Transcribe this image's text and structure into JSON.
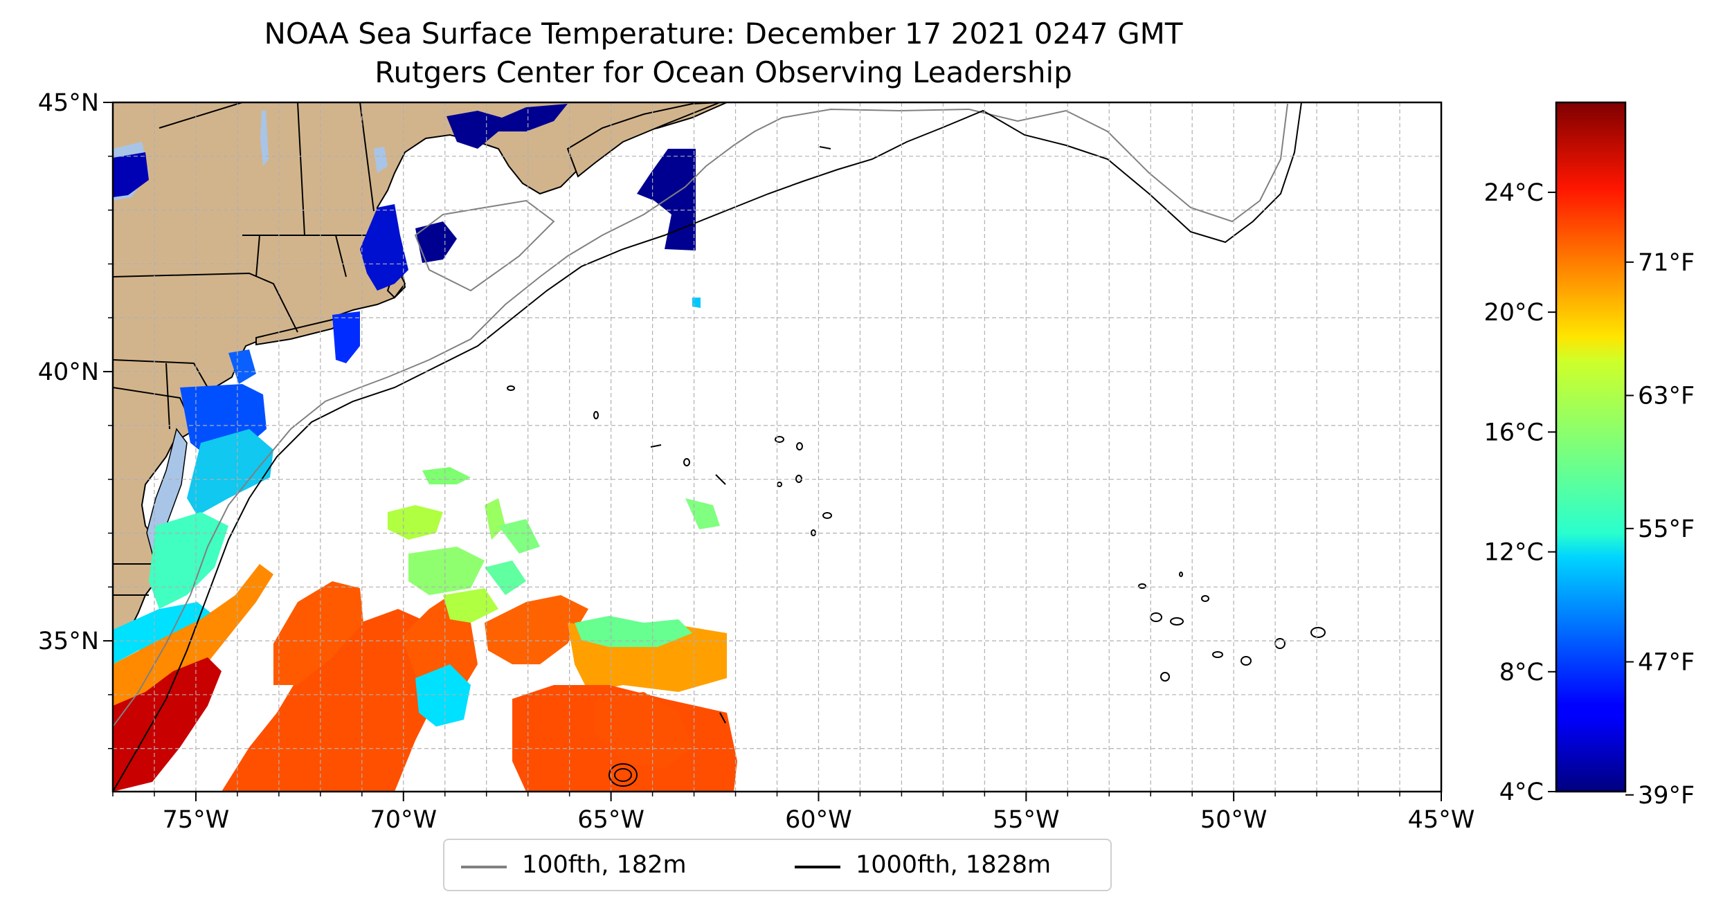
{
  "title": {
    "line1": "NOAA Sea Surface Temperature: December 17 2021 0247 GMT",
    "line2": "Rutgers Center for Ocean Observing Leadership"
  },
  "map_extent": {
    "lon": [
      -77,
      -45
    ],
    "lat": [
      32.2,
      45
    ]
  },
  "axes": {
    "x_ticks": [
      {
        "value": -75,
        "label": "75°W"
      },
      {
        "value": -70,
        "label": "70°W"
      },
      {
        "value": -65,
        "label": "65°W"
      },
      {
        "value": -60,
        "label": "60°W"
      },
      {
        "value": -55,
        "label": "55°W"
      },
      {
        "value": -50,
        "label": "50°W"
      },
      {
        "value": -45,
        "label": "45°W"
      }
    ],
    "y_ticks": [
      {
        "value": 45,
        "label": "45°N"
      },
      {
        "value": 40,
        "label": "40°N"
      },
      {
        "value": 35,
        "label": "35°N"
      }
    ],
    "grid": true
  },
  "colorbar": {
    "colormap": "jet",
    "range_c": [
      4,
      27
    ],
    "left_ticks": [
      {
        "value": 24,
        "label": "24°C"
      },
      {
        "value": 20,
        "label": "20°C"
      },
      {
        "value": 16,
        "label": "16°C"
      },
      {
        "value": 12,
        "label": "12°C"
      },
      {
        "value": 8,
        "label": "8°C"
      },
      {
        "value": 4,
        "label": "4°C"
      }
    ],
    "right_ticks": [
      {
        "value_c": 21.67,
        "label": "71°F"
      },
      {
        "value_c": 17.22,
        "label": "63°F"
      },
      {
        "value_c": 12.78,
        "label": "55°F"
      },
      {
        "value_c": 8.33,
        "label": "47°F"
      },
      {
        "value_c": 3.89,
        "label": "39°F"
      }
    ]
  },
  "legend": {
    "items": [
      {
        "label": "100fth, 182m",
        "color": "#808080"
      },
      {
        "label": "1000fth, 1828m",
        "color": "#000000"
      }
    ]
  },
  "colors": {
    "land": "#d2b48c",
    "lakes": "#a8c5e8",
    "grid": "#b0b0b0"
  }
}
